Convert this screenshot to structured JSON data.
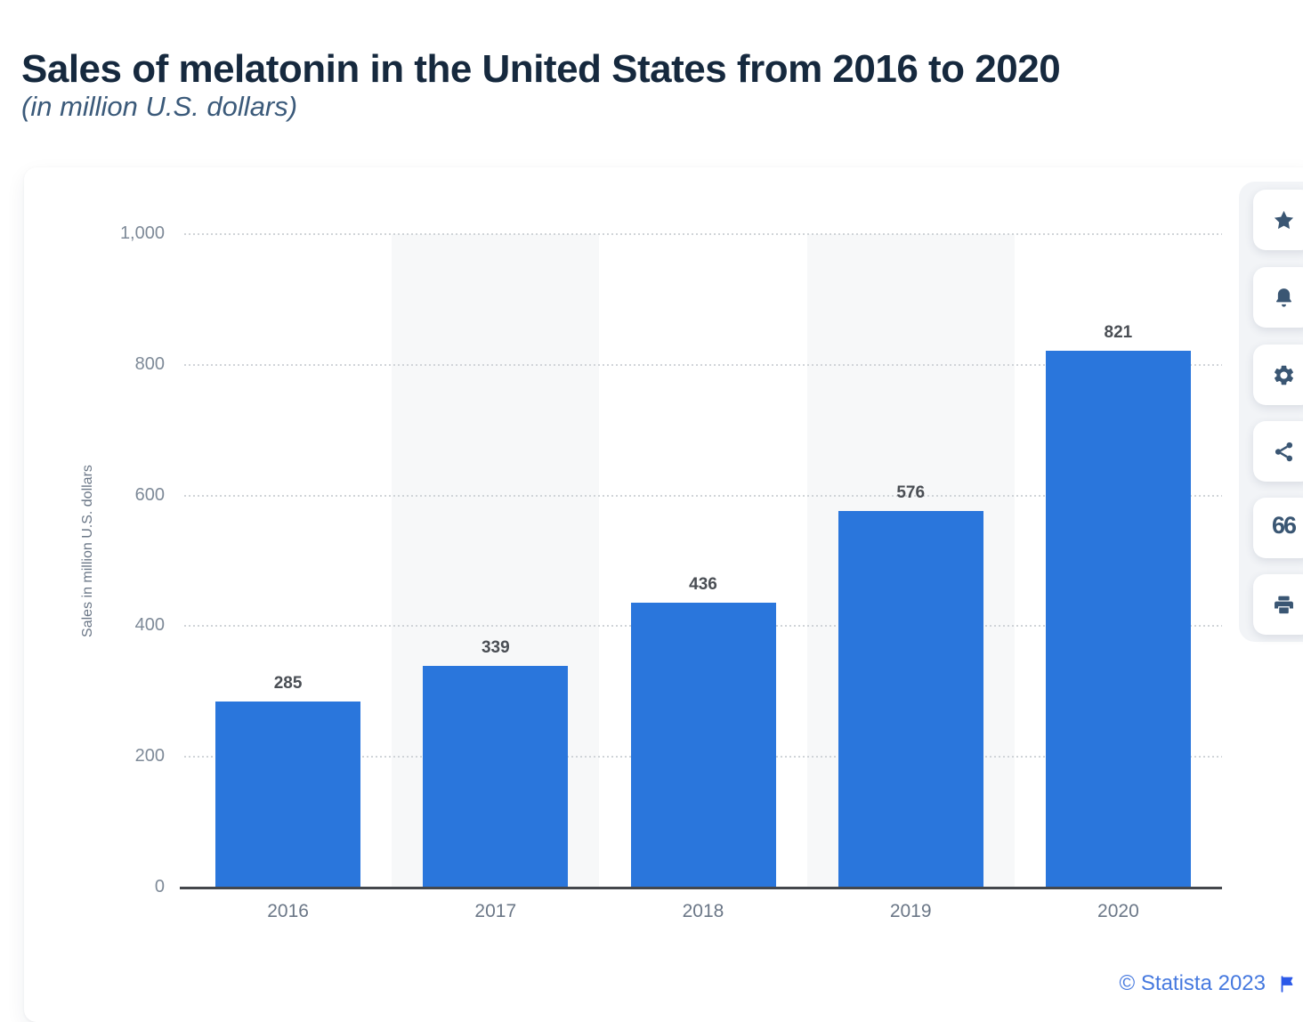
{
  "header": {
    "title": "Sales of melatonin in the United States from 2016 to 2020",
    "subtitle": "(in million U.S. dollars)"
  },
  "chart_data": {
    "type": "bar",
    "title": "Sales of melatonin in the United States from 2016 to 2020",
    "subtitle": "(in million U.S. dollars)",
    "categories": [
      "2016",
      "2017",
      "2018",
      "2019",
      "2020"
    ],
    "values": [
      285,
      339,
      436,
      576,
      821
    ],
    "xlabel": "",
    "ylabel": "Sales in million U.S. dollars",
    "ylim": [
      0,
      1000
    ],
    "ytick_values": [
      1000,
      800,
      600,
      400,
      200,
      0
    ],
    "ytick_labels": [
      "1,000",
      "800",
      "600",
      "400",
      "200",
      "0"
    ],
    "grid": "horizontal dotted",
    "legend": "none",
    "data_labels": "above bars",
    "shaded_columns": [
      1,
      3
    ]
  },
  "toolbar": {
    "items": [
      {
        "name": "favorite",
        "icon": "star-icon"
      },
      {
        "name": "alert",
        "icon": "bell-icon"
      },
      {
        "name": "settings",
        "icon": "gear-icon"
      },
      {
        "name": "share",
        "icon": "share-icon"
      },
      {
        "name": "cite",
        "icon": "quote-icon"
      },
      {
        "name": "print",
        "icon": "printer-icon"
      }
    ]
  },
  "footer": {
    "copyright": "© Statista 2023",
    "flag_icon": "flag-icon"
  },
  "colors": {
    "bar": "#2a76dc",
    "title": "#16293e",
    "subtitle": "#3b5a7a",
    "tick_label": "#7e8a98",
    "data_label": "#4a4e54",
    "axis_line": "#44474c",
    "gridline": "#d0d4d8",
    "plot_band": "#f7f8f9",
    "toolbar_icon": "#3a5673",
    "copyright": "#4679df",
    "flag": "#2b59e8"
  }
}
